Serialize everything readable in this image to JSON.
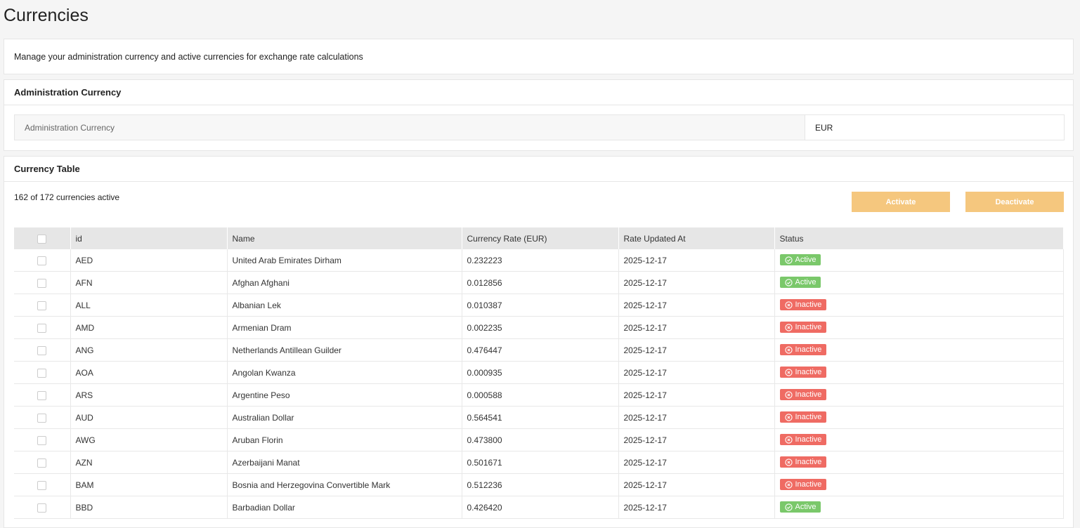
{
  "header": {
    "title": "Currencies"
  },
  "intro": "Manage your administration currency and active currencies for exchange rate calculations",
  "admin": {
    "title": "Administration Currency",
    "label": "Administration Currency",
    "value": "EUR"
  },
  "table": {
    "title": "Currency Table",
    "summary": "162 of 172 currencies active",
    "buttons": [
      "Activate",
      "Deactivate"
    ],
    "columns": [
      "id",
      "Name",
      "Currency Rate (EUR)",
      "Rate Updated At",
      "Status"
    ],
    "rows": [
      [
        "AED",
        "United Arab Emirates Dirham",
        "0.232223",
        "2025-12-17",
        "Active"
      ],
      [
        "AFN",
        "Afghan Afghani",
        "0.012856",
        "2025-12-17",
        "Active"
      ],
      [
        "ALL",
        "Albanian Lek",
        "0.010387",
        "2025-12-17",
        "Inactive"
      ],
      [
        "AMD",
        "Armenian Dram",
        "0.002235",
        "2025-12-17",
        "Inactive"
      ],
      [
        "ANG",
        "Netherlands Antillean Guilder",
        "0.476447",
        "2025-12-17",
        "Inactive"
      ],
      [
        "AOA",
        "Angolan Kwanza",
        "0.000935",
        "2025-12-17",
        "Inactive"
      ],
      [
        "ARS",
        "Argentine Peso",
        "0.000588",
        "2025-12-17",
        "Inactive"
      ],
      [
        "AUD",
        "Australian Dollar",
        "0.564541",
        "2025-12-17",
        "Inactive"
      ],
      [
        "AWG",
        "Aruban Florin",
        "0.473800",
        "2025-12-17",
        "Inactive"
      ],
      [
        "AZN",
        "Azerbaijani Manat",
        "0.501671",
        "2025-12-17",
        "Inactive"
      ],
      [
        "BAM",
        "Bosnia and Herzegovina Convertible Mark",
        "0.512236",
        "2025-12-17",
        "Inactive"
      ],
      [
        "BBD",
        "Barbadian Dollar",
        "0.426420",
        "2025-12-17",
        "Active"
      ]
    ]
  }
}
